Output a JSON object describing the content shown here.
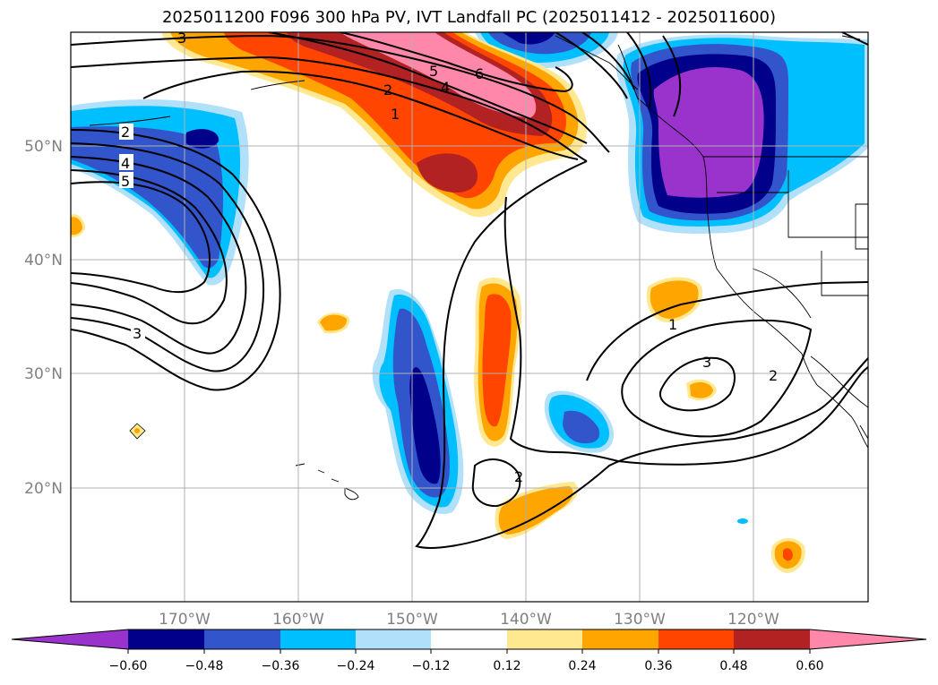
{
  "title": "2025011200 F096 300 hPa PV, IVT Landfall PC (2025011412 - 2025011600)",
  "map": {
    "lon_range": [
      -180,
      -110
    ],
    "lat_range": [
      10,
      60
    ],
    "lon_ticks": [
      "170°W",
      "160°W",
      "150°W",
      "140°W",
      "130°W",
      "120°W"
    ],
    "lat_ticks": [
      "50°N",
      "40°N",
      "30°N",
      "20°N"
    ],
    "grid": true
  },
  "colorbar": {
    "orientation": "horizontal",
    "extend": "both",
    "ticks": [
      "−0.60",
      "−0.48",
      "−0.36",
      "−0.24",
      "−0.12",
      "0.12",
      "0.24",
      "0.36",
      "0.48",
      "0.60"
    ],
    "colors": [
      "#9933cc",
      "#00008b",
      "#3355cc",
      "#00bfff",
      "#b0e0fa",
      "#ffffff",
      "#ffe890",
      "#ffa500",
      "#ff4500",
      "#b22222",
      "#ff88aa"
    ]
  },
  "contour_labels": [
    "2",
    "4",
    "5",
    "3",
    "1",
    "2",
    "5",
    "6",
    "4",
    "3",
    "1",
    "3",
    "2",
    "2"
  ]
}
